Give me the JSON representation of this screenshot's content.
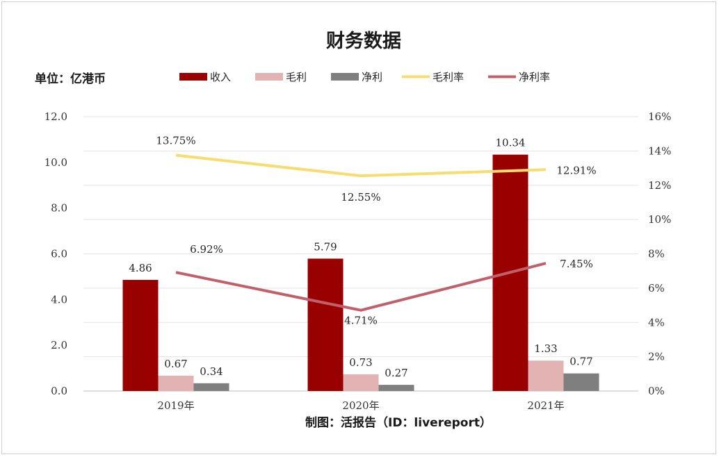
{
  "title": "财务数据",
  "unit_label": "单位：亿港币",
  "footer": "制图：活报告（ID：livereport）",
  "chart_data": {
    "type": "bar",
    "title": "财务数据",
    "categories": [
      "2019年",
      "2020年",
      "2021年"
    ],
    "bar_series": [
      {
        "name": "收入",
        "values": [
          4.86,
          5.79,
          10.34
        ],
        "labels": [
          "4.86",
          "5.79",
          "10.34"
        ],
        "color": "#990000"
      },
      {
        "name": "毛利",
        "values": [
          0.67,
          0.73,
          1.33
        ],
        "labels": [
          "0.67",
          "0.73",
          "1.33"
        ],
        "color": "#e3b3b3"
      },
      {
        "name": "净利",
        "values": [
          0.34,
          0.27,
          0.77
        ],
        "labels": [
          "0.34",
          "0.27",
          "0.77"
        ],
        "color": "#7f7f7f"
      }
    ],
    "line_series": [
      {
        "name": "毛利率",
        "values": [
          13.75,
          12.55,
          12.91
        ],
        "labels": [
          "13.75%",
          "12.55%",
          "12.91%"
        ],
        "color": "#f7dc6f"
      },
      {
        "name": "净利率",
        "values": [
          6.92,
          4.71,
          7.45
        ],
        "labels": [
          "6.92%",
          "4.71%",
          "7.45%"
        ],
        "color": "#c0606a"
      }
    ],
    "y_left": {
      "range": [
        0,
        12
      ],
      "ticks": [
        "0.0",
        "2.0",
        "4.0",
        "6.0",
        "8.0",
        "10.0",
        "12.0"
      ]
    },
    "y_right": {
      "range": [
        0,
        16
      ],
      "ticks": [
        "0%",
        "2%",
        "4%",
        "6%",
        "8%",
        "10%",
        "12%",
        "14%",
        "16%"
      ]
    },
    "grid": true,
    "legend_position": "top"
  }
}
